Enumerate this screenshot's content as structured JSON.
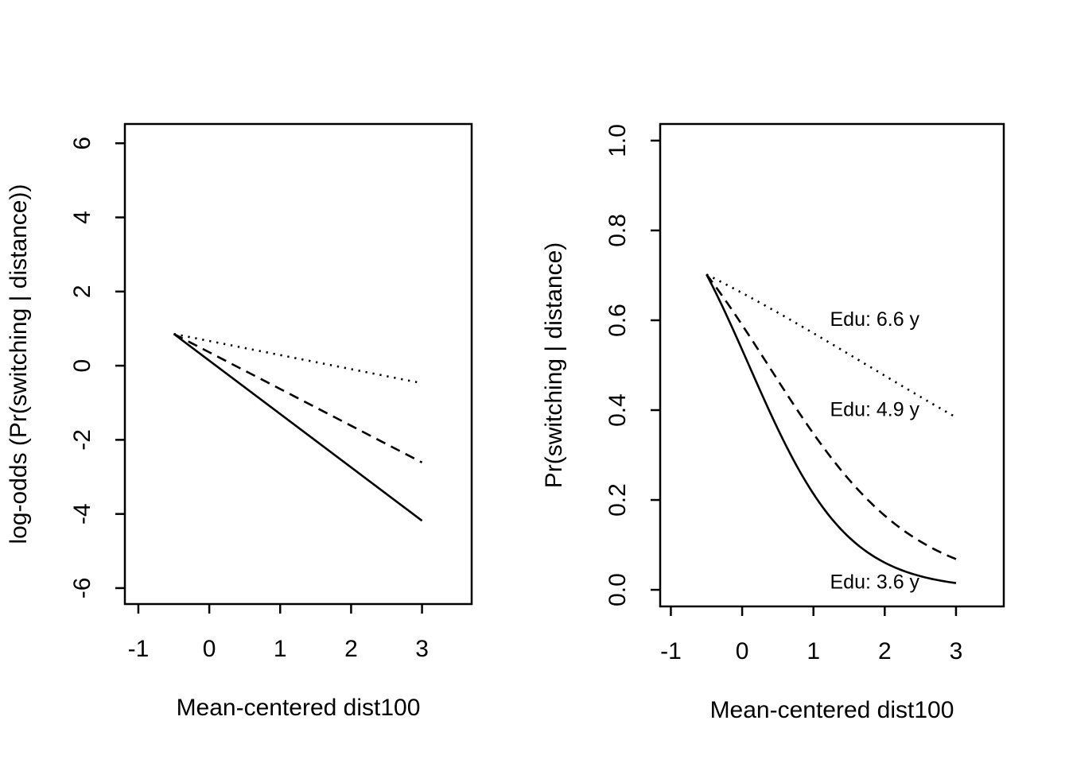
{
  "page": {
    "background": "#ffffff",
    "foreground": "#000000",
    "description": "Two-panel base-R style statistical plot of well switching probability versus mean-centered distance at three education levels"
  },
  "chart_data": [
    {
      "type": "line",
      "panel": "left",
      "title": "",
      "xlabel": "Mean-centered dist100",
      "ylabel": "log-odds (Pr(switching | distance))",
      "xlim": [
        -1.19,
        3.7
      ],
      "ylim": [
        -6.43,
        6.52
      ],
      "xticks": [
        -1,
        0,
        1,
        2,
        3
      ],
      "xtick_labels": [
        "-1",
        "0",
        "1",
        "2",
        "3"
      ],
      "yticks": [
        -6,
        -4,
        -2,
        0,
        2,
        4,
        6
      ],
      "ytick_labels": [
        "-6",
        "-4",
        "-2",
        "0",
        "2",
        "4",
        "6"
      ],
      "grid": false,
      "legend": "none",
      "x_range": [
        -0.5,
        3
      ],
      "series": [
        {
          "name": "Edu: 3.6 y",
          "style": "solid",
          "model": "linear",
          "intercept": 0.137,
          "slope": -1.44,
          "points": [
            [
              -0.5,
              0.86
            ],
            [
              3,
              -4.18
            ]
          ]
        },
        {
          "name": "Edu: 4.9 y",
          "style": "dashed",
          "model": "linear",
          "intercept": 0.362,
          "slope": -0.991,
          "points": [
            [
              -0.5,
              0.86
            ],
            [
              3,
              -2.61
            ]
          ]
        },
        {
          "name": "Edu: 6.6 y",
          "style": "dotted",
          "model": "linear",
          "intercept": 0.667,
          "slope": -0.38,
          "points": [
            [
              -0.5,
              0.86
            ],
            [
              3,
              -0.47
            ]
          ]
        }
      ],
      "annotations": []
    },
    {
      "type": "line",
      "panel": "right",
      "title": "",
      "xlabel": "Mean-centered dist100",
      "ylabel": "Pr(switching | distance)",
      "xlim": [
        -1.15,
        3.67
      ],
      "ylim": [
        -0.037,
        1.037
      ],
      "xticks": [
        -1,
        0,
        1,
        2,
        3
      ],
      "xtick_labels": [
        "-1",
        "0",
        "1",
        "2",
        "3"
      ],
      "yticks": [
        0,
        0.2,
        0.4,
        0.6,
        0.8,
        1
      ],
      "ytick_labels": [
        "0.0",
        "0.2",
        "0.4",
        "0.6",
        "0.8",
        "1.0"
      ],
      "grid": false,
      "legend": "labels-on-plot",
      "x_range": [
        -0.5,
        3
      ],
      "series": [
        {
          "name": "Edu: 3.6 y",
          "style": "solid",
          "model": "invlogit",
          "intercept": 0.137,
          "slope": -1.44,
          "points": [
            [
              -0.5,
              0.702
            ],
            [
              0,
              0.534
            ],
            [
              0.5,
              0.358
            ],
            [
              1,
              0.214
            ],
            [
              1.5,
              0.117
            ],
            [
              2,
              0.06
            ],
            [
              2.5,
              0.03
            ],
            [
              3,
              0.015
            ]
          ]
        },
        {
          "name": "Edu: 4.9 y",
          "style": "dashed",
          "model": "invlogit",
          "intercept": 0.362,
          "slope": -0.991,
          "points": [
            [
              -0.5,
              0.702
            ],
            [
              0,
              0.59
            ],
            [
              0.5,
              0.467
            ],
            [
              1,
              0.348
            ],
            [
              1.5,
              0.245
            ],
            [
              2,
              0.165
            ],
            [
              2.5,
              0.108
            ],
            [
              3,
              0.069
            ]
          ]
        },
        {
          "name": "Edu: 6.6 y",
          "style": "dotted",
          "model": "invlogit",
          "intercept": 0.667,
          "slope": -0.38,
          "points": [
            [
              -0.5,
              0.702
            ],
            [
              0,
              0.661
            ],
            [
              0.5,
              0.617
            ],
            [
              1,
              0.571
            ],
            [
              1.5,
              0.524
            ],
            [
              2,
              0.477
            ],
            [
              2.5,
              0.43
            ],
            [
              3,
              0.384
            ]
          ]
        }
      ],
      "annotations": [
        {
          "text": "Edu: 6.6 y",
          "x": 1.86,
          "y": 0.603
        },
        {
          "text": "Edu: 4.9 y",
          "x": 1.86,
          "y": 0.402
        },
        {
          "text": "Edu: 3.6 y",
          "x": 1.86,
          "y": 0.018
        }
      ]
    }
  ]
}
